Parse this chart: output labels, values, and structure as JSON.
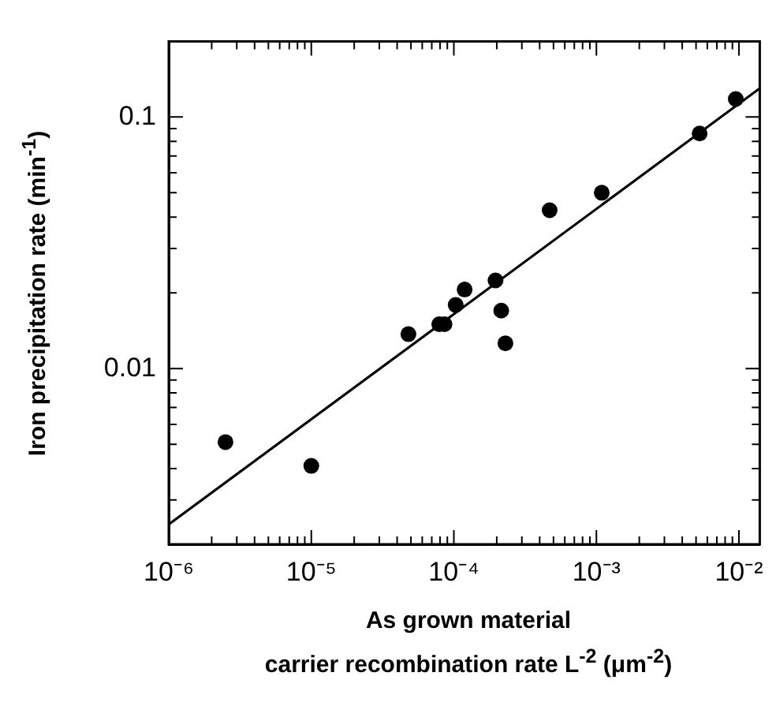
{
  "chart_data": {
    "type": "scatter",
    "xlabel": "As grown material\ncarrier recombination rate L$^{-2}$ (μm$^{-2}$)",
    "ylabel": "Iron precipitation rate (min$^{-1}$)",
    "log": "xy",
    "marker": "circle",
    "xlim": [
      1e-06,
      0.014
    ],
    "ylim": [
      0.002,
      0.2
    ],
    "xticks": [
      {
        "value": 1e-06,
        "label": "10⁻⁶"
      },
      {
        "value": 2e-06,
        "label": null
      },
      {
        "value": 3e-06,
        "label": null
      },
      {
        "value": 4e-06,
        "label": null
      },
      {
        "value": 5e-06,
        "label": null
      },
      {
        "value": 6e-06,
        "label": null
      },
      {
        "value": 7e-06,
        "label": null
      },
      {
        "value": 8e-06,
        "label": null
      },
      {
        "value": 9e-06,
        "label": null
      },
      {
        "value": 1e-05,
        "label": "10⁻⁵"
      },
      {
        "value": 2e-05,
        "label": null
      },
      {
        "value": 3e-05,
        "label": null
      },
      {
        "value": 4e-05,
        "label": null
      },
      {
        "value": 5e-05,
        "label": null
      },
      {
        "value": 6e-05,
        "label": null
      },
      {
        "value": 7e-05,
        "label": null
      },
      {
        "value": 8e-05,
        "label": null
      },
      {
        "value": 9e-05,
        "label": null
      },
      {
        "value": 0.0001,
        "label": "10⁻⁴"
      },
      {
        "value": 0.0002,
        "label": null
      },
      {
        "value": 0.0003,
        "label": null
      },
      {
        "value": 0.0004,
        "label": null
      },
      {
        "value": 0.0005,
        "label": null
      },
      {
        "value": 0.0006,
        "label": null
      },
      {
        "value": 0.0007,
        "label": null
      },
      {
        "value": 0.0008,
        "label": null
      },
      {
        "value": 0.0009,
        "label": null
      },
      {
        "value": 0.001,
        "label": "10⁻³"
      },
      {
        "value": 0.002,
        "label": null
      },
      {
        "value": 0.003,
        "label": null
      },
      {
        "value": 0.004,
        "label": null
      },
      {
        "value": 0.005,
        "label": null
      },
      {
        "value": 0.006,
        "label": null
      },
      {
        "value": 0.007,
        "label": null
      },
      {
        "value": 0.008,
        "label": null
      },
      {
        "value": 0.009,
        "label": null
      },
      {
        "value": 0.01,
        "label": "10⁻²"
      }
    ],
    "yticks": [
      {
        "value": 0.002,
        "label": null
      },
      {
        "value": 0.003,
        "label": null
      },
      {
        "value": 0.004,
        "label": null
      },
      {
        "value": 0.005,
        "label": null
      },
      {
        "value": 0.006,
        "label": null
      },
      {
        "value": 0.007,
        "label": null
      },
      {
        "value": 0.008,
        "label": null
      },
      {
        "value": 0.009,
        "label": null
      },
      0.01,
      {
        "value": 0.02,
        "label": null
      },
      {
        "value": 0.03,
        "label": null
      },
      {
        "value": 0.04,
        "label": null
      },
      {
        "value": 0.05,
        "label": null
      },
      {
        "value": 0.06,
        "label": null
      },
      {
        "value": 0.07,
        "label": null
      },
      {
        "value": 0.08,
        "label": null
      },
      {
        "value": 0.09,
        "label": null
      },
      0.1,
      {
        "value": 0.2,
        "label": null
      }
    ],
    "series": [
      {
        "color": "#000000",
        "x": [
          2.5e-06,
          1e-05,
          4.8e-05,
          7.9e-05,
          8.6e-05,
          0.000103,
          0.000119,
          0.000196,
          0.000215,
          0.00023,
          0.00047,
          0.00109,
          0.0053,
          0.0095
        ],
        "values": [
          0.0051,
          0.0041,
          0.0137,
          0.015,
          0.015,
          0.0179,
          0.0206,
          0.0224,
          0.017,
          0.0126,
          0.0426,
          0.05,
          0.086,
          0.118
        ]
      },
      {
        "type": "line",
        "color": "#000000",
        "marker": "none",
        "line_style": "solid",
        "x": [
          1e-06,
          0.014
        ],
        "values": [
          0.0024,
          0.13
        ]
      }
    ]
  }
}
